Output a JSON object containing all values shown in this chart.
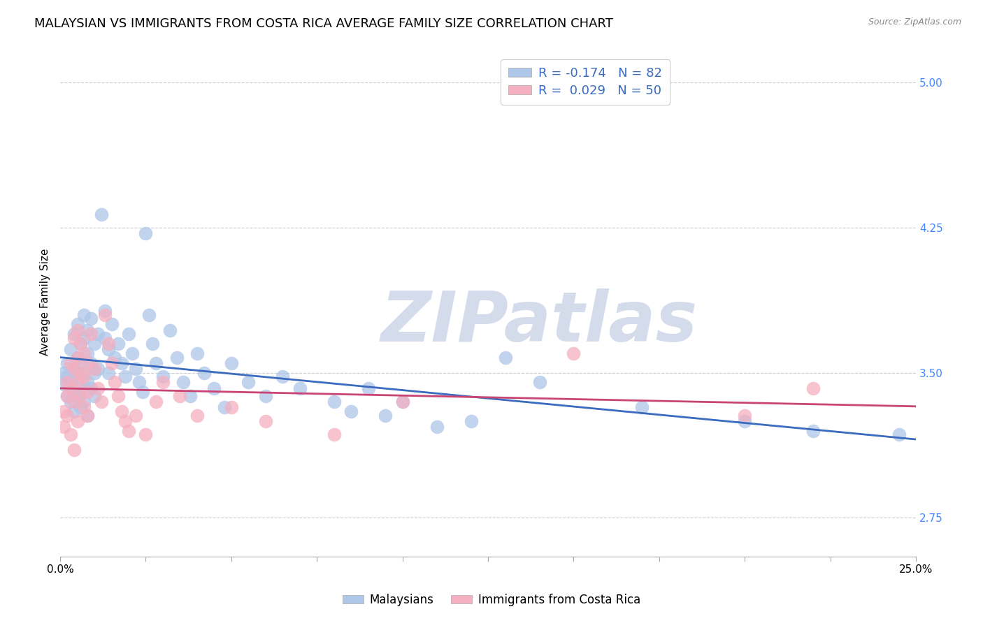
{
  "title": "MALAYSIAN VS IMMIGRANTS FROM COSTA RICA AVERAGE FAMILY SIZE CORRELATION CHART",
  "source": "Source: ZipAtlas.com",
  "ylabel": "Average Family Size",
  "yticks": [
    2.75,
    3.5,
    4.25,
    5.0
  ],
  "xlim": [
    0.0,
    0.25
  ],
  "ylim": [
    2.55,
    5.18
  ],
  "blue_color": "#aec6e8",
  "pink_color": "#f4afc0",
  "blue_line_color": "#3a6bbf",
  "pink_line_color": "#c84474",
  "watermark": "ZIPatlas",
  "watermark_color": "#d0d8e8",
  "blue_points": [
    [
      0.001,
      3.44
    ],
    [
      0.001,
      3.5
    ],
    [
      0.002,
      3.48
    ],
    [
      0.002,
      3.38
    ],
    [
      0.002,
      3.55
    ],
    [
      0.003,
      3.62
    ],
    [
      0.003,
      3.45
    ],
    [
      0.003,
      3.35
    ],
    [
      0.004,
      3.7
    ],
    [
      0.004,
      3.52
    ],
    [
      0.004,
      3.4
    ],
    [
      0.004,
      3.3
    ],
    [
      0.005,
      3.75
    ],
    [
      0.005,
      3.58
    ],
    [
      0.005,
      3.48
    ],
    [
      0.005,
      3.38
    ],
    [
      0.006,
      3.65
    ],
    [
      0.006,
      3.55
    ],
    [
      0.006,
      3.42
    ],
    [
      0.006,
      3.32
    ],
    [
      0.007,
      3.8
    ],
    [
      0.007,
      3.68
    ],
    [
      0.007,
      3.5
    ],
    [
      0.007,
      3.35
    ],
    [
      0.008,
      3.72
    ],
    [
      0.008,
      3.6
    ],
    [
      0.008,
      3.45
    ],
    [
      0.008,
      3.28
    ],
    [
      0.009,
      3.78
    ],
    [
      0.009,
      3.55
    ],
    [
      0.009,
      3.42
    ],
    [
      0.01,
      3.65
    ],
    [
      0.01,
      3.5
    ],
    [
      0.01,
      3.38
    ],
    [
      0.011,
      3.7
    ],
    [
      0.011,
      3.52
    ],
    [
      0.012,
      4.32
    ],
    [
      0.013,
      3.82
    ],
    [
      0.013,
      3.68
    ],
    [
      0.014,
      3.62
    ],
    [
      0.014,
      3.5
    ],
    [
      0.015,
      3.75
    ],
    [
      0.016,
      3.58
    ],
    [
      0.017,
      3.65
    ],
    [
      0.018,
      3.55
    ],
    [
      0.019,
      3.48
    ],
    [
      0.02,
      3.7
    ],
    [
      0.021,
      3.6
    ],
    [
      0.022,
      3.52
    ],
    [
      0.023,
      3.45
    ],
    [
      0.024,
      3.4
    ],
    [
      0.025,
      4.22
    ],
    [
      0.026,
      3.8
    ],
    [
      0.027,
      3.65
    ],
    [
      0.028,
      3.55
    ],
    [
      0.03,
      3.48
    ],
    [
      0.032,
      3.72
    ],
    [
      0.034,
      3.58
    ],
    [
      0.036,
      3.45
    ],
    [
      0.038,
      3.38
    ],
    [
      0.04,
      3.6
    ],
    [
      0.042,
      3.5
    ],
    [
      0.045,
      3.42
    ],
    [
      0.048,
      3.32
    ],
    [
      0.05,
      3.55
    ],
    [
      0.055,
      3.45
    ],
    [
      0.06,
      3.38
    ],
    [
      0.065,
      3.48
    ],
    [
      0.07,
      3.42
    ],
    [
      0.08,
      3.35
    ],
    [
      0.085,
      3.3
    ],
    [
      0.09,
      3.42
    ],
    [
      0.095,
      3.28
    ],
    [
      0.1,
      3.35
    ],
    [
      0.11,
      3.22
    ],
    [
      0.12,
      3.25
    ],
    [
      0.13,
      3.58
    ],
    [
      0.14,
      3.45
    ],
    [
      0.17,
      3.32
    ],
    [
      0.2,
      3.25
    ],
    [
      0.22,
      3.2
    ],
    [
      0.245,
      3.18
    ]
  ],
  "pink_points": [
    [
      0.001,
      3.3
    ],
    [
      0.001,
      3.22
    ],
    [
      0.002,
      3.45
    ],
    [
      0.002,
      3.38
    ],
    [
      0.002,
      3.28
    ],
    [
      0.003,
      3.55
    ],
    [
      0.003,
      3.42
    ],
    [
      0.003,
      3.18
    ],
    [
      0.004,
      3.68
    ],
    [
      0.004,
      3.52
    ],
    [
      0.004,
      3.35
    ],
    [
      0.004,
      3.1
    ],
    [
      0.005,
      3.72
    ],
    [
      0.005,
      3.58
    ],
    [
      0.005,
      3.45
    ],
    [
      0.005,
      3.25
    ],
    [
      0.006,
      3.65
    ],
    [
      0.006,
      3.5
    ],
    [
      0.006,
      3.38
    ],
    [
      0.007,
      3.6
    ],
    [
      0.007,
      3.48
    ],
    [
      0.007,
      3.32
    ],
    [
      0.008,
      3.55
    ],
    [
      0.008,
      3.4
    ],
    [
      0.008,
      3.28
    ],
    [
      0.009,
      3.7
    ],
    [
      0.01,
      3.52
    ],
    [
      0.011,
      3.42
    ],
    [
      0.012,
      3.35
    ],
    [
      0.013,
      3.8
    ],
    [
      0.014,
      3.65
    ],
    [
      0.015,
      3.55
    ],
    [
      0.016,
      3.45
    ],
    [
      0.017,
      3.38
    ],
    [
      0.018,
      3.3
    ],
    [
      0.019,
      3.25
    ],
    [
      0.02,
      3.2
    ],
    [
      0.022,
      3.28
    ],
    [
      0.025,
      3.18
    ],
    [
      0.028,
      3.35
    ],
    [
      0.03,
      3.45
    ],
    [
      0.035,
      3.38
    ],
    [
      0.04,
      3.28
    ],
    [
      0.05,
      3.32
    ],
    [
      0.06,
      3.25
    ],
    [
      0.08,
      3.18
    ],
    [
      0.1,
      3.35
    ],
    [
      0.15,
      3.6
    ],
    [
      0.2,
      3.28
    ],
    [
      0.22,
      3.42
    ]
  ],
  "legend_label_blue": "R = -0.174   N = 82",
  "legend_label_pink": "R =  0.029   N = 50",
  "bottom_legend_blue": "Malaysians",
  "bottom_legend_pink": "Immigrants from Costa Rica",
  "grid_color": "#cccccc",
  "background_color": "#ffffff",
  "title_fontsize": 13,
  "axis_label_fontsize": 11,
  "tick_fontsize": 11,
  "right_tick_color": "#4488ff",
  "xtick_positions": [
    0.0,
    0.025,
    0.05,
    0.075,
    0.1,
    0.125,
    0.15,
    0.175,
    0.2,
    0.225,
    0.25
  ]
}
